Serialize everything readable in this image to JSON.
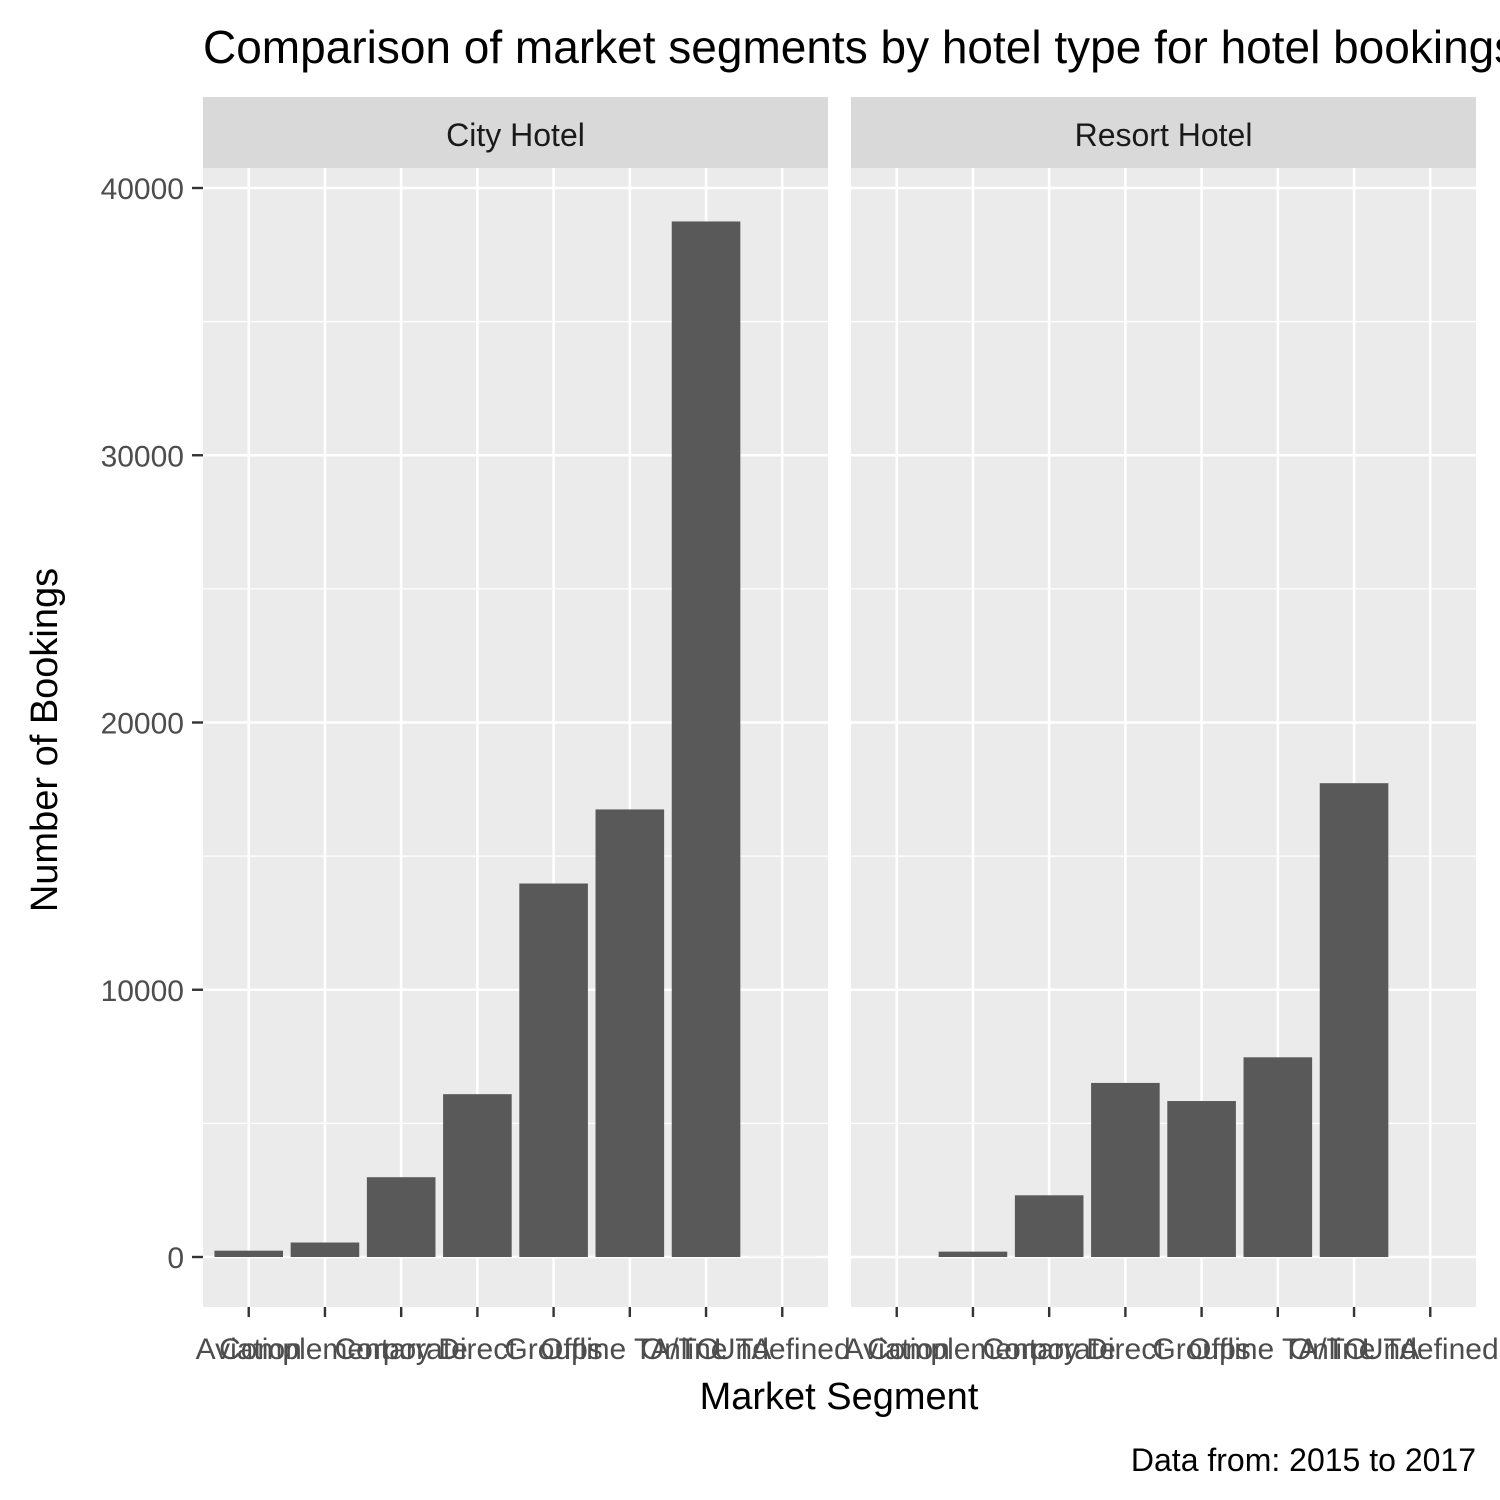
{
  "chart_data": {
    "type": "bar",
    "title": "Comparison of market segments by hotel type for hotel bookings",
    "xlabel": "Market Segment",
    "ylabel": "Number of Bookings",
    "caption": "Data from: 2015 to 2017",
    "categories": [
      "Aviation",
      "Complementary",
      "Corporate",
      "Direct",
      "Groups",
      "Offline TA/TO",
      "Online TA",
      "Undefined"
    ],
    "ylim": [
      0,
      42000
    ],
    "y_ticks": [
      0,
      10000,
      20000,
      30000,
      40000
    ],
    "y_tick_labels": [
      "0",
      "10000",
      "20000",
      "30000",
      "40000"
    ],
    "grid": true,
    "bar_color": "#595959",
    "panel_background": "#ebebeb",
    "strip_background": "#d9d9d9",
    "facets": [
      {
        "name": "City Hotel",
        "values": [
          237,
          542,
          2986,
          6093,
          13975,
          16747,
          38748,
          2
        ]
      },
      {
        "name": "Resort Hotel",
        "values": [
          0,
          201,
          2309,
          6513,
          5836,
          7472,
          17729,
          0
        ]
      }
    ]
  }
}
